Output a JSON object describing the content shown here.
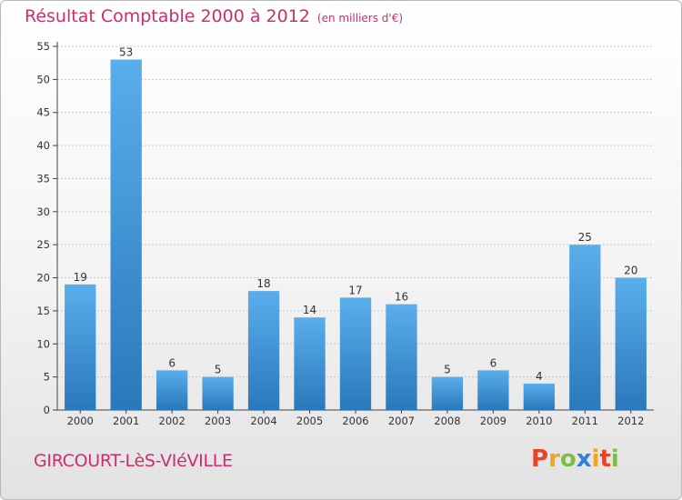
{
  "header": {
    "title": "Résultat Comptable 2000 à 2012",
    "unit": "(en milliers d'€)"
  },
  "footer": {
    "place": "GIRCOURT-LèS-VIéVILLE",
    "logo_letters": [
      "P",
      "r",
      "o",
      "x",
      "i",
      "t",
      "i"
    ]
  },
  "colors": {
    "title": "#cc2d6d",
    "bar_light": "#5aaeea",
    "bar_dark": "#2a78bc",
    "grid": "#c8c8c8",
    "logo": [
      "#e8442a",
      "#f2a51a",
      "#7bc043",
      "#2f7fd6",
      "#f2a51a",
      "#e8442a",
      "#7bc043"
    ]
  },
  "chart_data": {
    "type": "bar",
    "categories": [
      "2000",
      "2001",
      "2002",
      "2003",
      "2004",
      "2005",
      "2006",
      "2007",
      "2008",
      "2009",
      "2010",
      "2011",
      "2012"
    ],
    "values": [
      19,
      53,
      6,
      5,
      18,
      14,
      17,
      16,
      5,
      6,
      4,
      25,
      20
    ],
    "title": "Résultat Comptable 2000 à 2012",
    "ylim": [
      0,
      55
    ],
    "yticks": [
      0,
      5,
      10,
      15,
      20,
      25,
      30,
      35,
      40,
      45,
      50,
      55
    ],
    "grid": true,
    "legend": "none"
  }
}
